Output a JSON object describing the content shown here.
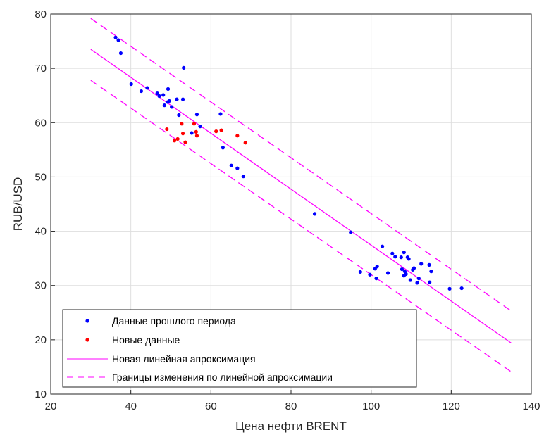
{
  "chart_data": {
    "type": "scatter",
    "xlabel": "Цена нефти BRENT",
    "ylabel": "RUB/USD",
    "xlim": [
      20,
      140
    ],
    "ylim": [
      10,
      80
    ],
    "xticks": [
      20,
      40,
      60,
      80,
      100,
      120,
      140
    ],
    "yticks": [
      10,
      20,
      30,
      40,
      50,
      60,
      70,
      80
    ],
    "grid": true,
    "legend_position": "bottom-left",
    "series": [
      {
        "name": "Данные прошлого периода",
        "kind": "points",
        "color": "#0000ff",
        "points": [
          [
            36.2,
            75.7
          ],
          [
            36.9,
            75.2
          ],
          [
            37.5,
            72.8
          ],
          [
            40.1,
            67.1
          ],
          [
            42.6,
            65.8
          ],
          [
            44.1,
            66.4
          ],
          [
            46.6,
            65.4
          ],
          [
            47.1,
            64.9
          ],
          [
            48.1,
            65.1
          ],
          [
            48.4,
            63.2
          ],
          [
            49.3,
            66.2
          ],
          [
            49.2,
            63.8
          ],
          [
            49.6,
            64.0
          ],
          [
            50.2,
            62.9
          ],
          [
            51.5,
            64.3
          ],
          [
            52.0,
            61.4
          ],
          [
            53.0,
            64.3
          ],
          [
            53.2,
            70.1
          ],
          [
            55.2,
            58.1
          ],
          [
            56.5,
            61.5
          ],
          [
            57.3,
            59.3
          ],
          [
            62.4,
            61.6
          ],
          [
            63.0,
            55.4
          ],
          [
            65.1,
            52.1
          ],
          [
            66.6,
            51.6
          ],
          [
            68.1,
            50.1
          ],
          [
            85.9,
            43.2
          ],
          [
            94.9,
            39.8
          ],
          [
            97.3,
            32.5
          ],
          [
            99.7,
            32.0
          ],
          [
            101.0,
            33.1
          ],
          [
            101.3,
            31.3
          ],
          [
            101.5,
            33.5
          ],
          [
            102.8,
            37.2
          ],
          [
            104.2,
            32.3
          ],
          [
            105.3,
            35.9
          ],
          [
            106.0,
            35.3
          ],
          [
            107.5,
            35.2
          ],
          [
            107.7,
            33.0
          ],
          [
            108.2,
            36.1
          ],
          [
            108.2,
            31.8
          ],
          [
            108.4,
            32.6
          ],
          [
            108.7,
            32.1
          ],
          [
            109.1,
            35.2
          ],
          [
            109.4,
            34.9
          ],
          [
            109.8,
            31.0
          ],
          [
            110.4,
            32.9
          ],
          [
            110.7,
            33.2
          ],
          [
            111.5,
            30.5
          ],
          [
            111.9,
            31.3
          ],
          [
            112.5,
            34.0
          ],
          [
            114.5,
            33.8
          ],
          [
            114.6,
            30.6
          ],
          [
            115.0,
            32.6
          ],
          [
            119.6,
            29.4
          ],
          [
            122.6,
            29.5
          ]
        ]
      },
      {
        "name": "Новые данные",
        "kind": "points",
        "color": "#ff0000",
        "points": [
          [
            49.0,
            58.8
          ],
          [
            50.9,
            56.7
          ],
          [
            51.7,
            57.0
          ],
          [
            52.7,
            59.8
          ],
          [
            53.0,
            58.0
          ],
          [
            53.6,
            56.4
          ],
          [
            55.8,
            59.8
          ],
          [
            56.3,
            58.3
          ],
          [
            56.5,
            57.6
          ],
          [
            61.3,
            58.4
          ],
          [
            62.6,
            58.6
          ],
          [
            66.6,
            57.6
          ],
          [
            68.6,
            56.3
          ]
        ]
      },
      {
        "name": "Новая линейная апроксимация",
        "kind": "line",
        "color": "#ff00ff",
        "style": "solid",
        "points": [
          [
            30,
            73.5
          ],
          [
            135,
            19.4
          ]
        ]
      },
      {
        "name": "Границы изменения по линейной апроксимации",
        "kind": "line",
        "color": "#ff00ff",
        "style": "dashed",
        "points": [
          [
            30,
            79.2
          ],
          [
            135,
            25.3
          ]
        ]
      },
      {
        "name": "",
        "kind": "line",
        "color": "#ff00ff",
        "style": "dashed",
        "points": [
          [
            30,
            67.8
          ],
          [
            135,
            14.1
          ]
        ]
      }
    ]
  }
}
